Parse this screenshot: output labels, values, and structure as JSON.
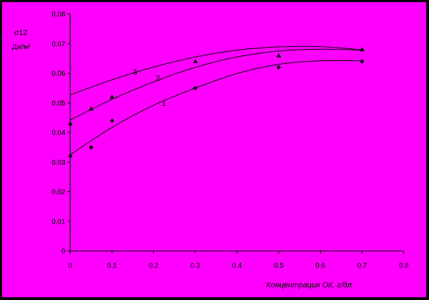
{
  "colors": {
    "frame": "#000000",
    "plot_bg": "#FF00FF",
    "ink": "#000000"
  },
  "chart_data": {
    "type": "scatter",
    "title": "",
    "xlabel": "Концентрация ОК, г/дл",
    "ylabel_line1": "σ12",
    "ylabel_line2": "Дж/м²",
    "xlim": [
      0,
      0.8
    ],
    "ylim": [
      0,
      0.08
    ],
    "x_ticks": [
      0,
      0.1,
      0.2,
      0.3,
      0.4,
      0.5,
      0.6,
      0.7,
      0.8
    ],
    "x_tick_labels": [
      "0",
      "0.1",
      "0.2",
      "0.3",
      "0.4",
      "0.5",
      "0.6",
      "0.7",
      "0.8"
    ],
    "y_ticks": [
      0,
      0.01,
      0.02,
      0.03,
      0.04,
      0.05,
      0.06,
      0.07,
      0.08
    ],
    "y_tick_labels": [
      "0",
      "0.01",
      "0.02",
      "0.03",
      "0.04",
      "0.05",
      "0.06",
      "0.07",
      "0.08"
    ],
    "grid": false,
    "series": [
      {
        "name": "1",
        "marker": "diamond",
        "points": [
          [
            0,
            0.032
          ],
          [
            0.05,
            0.035
          ],
          [
            0.1,
            0.044
          ],
          [
            0.3,
            0.055
          ],
          [
            0.5,
            0.062
          ],
          [
            0.7,
            0.064
          ]
        ],
        "trend": [
          [
            0,
            0.0325
          ],
          [
            0.1,
            0.0417
          ],
          [
            0.2,
            0.0492
          ],
          [
            0.3,
            0.055
          ],
          [
            0.4,
            0.0599
          ],
          [
            0.5,
            0.063
          ],
          [
            0.6,
            0.0642
          ],
          [
            0.7,
            0.0642
          ]
        ],
        "label_at": [
          0.22,
          0.049
        ]
      },
      {
        "name": "2",
        "marker": "triangle",
        "points": [
          [
            0,
            0.043
          ],
          [
            0.05,
            0.048
          ],
          [
            0.1,
            0.052
          ],
          [
            0.3,
            0.064
          ],
          [
            0.5,
            0.066
          ],
          [
            0.7,
            0.068
          ]
        ],
        "trend": [
          [
            0,
            0.0442
          ],
          [
            0.1,
            0.0512
          ],
          [
            0.2,
            0.0571
          ],
          [
            0.3,
            0.062
          ],
          [
            0.4,
            0.0655
          ],
          [
            0.5,
            0.0675
          ],
          [
            0.6,
            0.0681
          ],
          [
            0.7,
            0.0678
          ]
        ],
        "label_at": [
          0.205,
          0.0575
        ]
      },
      {
        "name": "3",
        "marker": "none",
        "points": [],
        "trend": [
          [
            0,
            0.0527
          ],
          [
            0.1,
            0.0578
          ],
          [
            0.2,
            0.0621
          ],
          [
            0.3,
            0.0655
          ],
          [
            0.4,
            0.0678
          ],
          [
            0.5,
            0.0689
          ],
          [
            0.6,
            0.069
          ],
          [
            0.7,
            0.0679
          ]
        ],
        "label_at": [
          0.15,
          0.0595
        ]
      }
    ]
  }
}
